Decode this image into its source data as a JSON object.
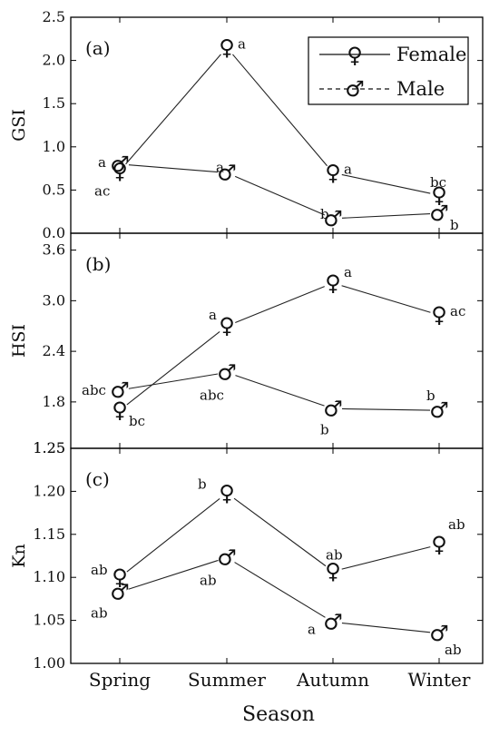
{
  "chart_data": [
    {
      "type": "line",
      "panel_label": "(a)",
      "ylabel": "GSI",
      "ylim": [
        0.0,
        2.5
      ],
      "yticks": [
        "0.0",
        "0.5",
        "1.0",
        "1.5",
        "2.0",
        "2.5"
      ],
      "categories": [
        "Spring",
        "Summer",
        "Autumn",
        "Winter"
      ],
      "series": [
        {
          "name": "Female",
          "values": [
            0.72,
            2.15,
            0.7,
            0.44
          ],
          "sig": [
            "ac",
            "a",
            "a",
            "bc"
          ]
        },
        {
          "name": "Male",
          "values": [
            0.8,
            0.7,
            0.17,
            0.23
          ],
          "sig": [
            "a",
            "a",
            "b",
            "b"
          ]
        }
      ]
    },
    {
      "type": "line",
      "panel_label": "(b)",
      "ylabel": "HSI",
      "ylim": [
        1.25,
        3.8
      ],
      "yticks": [
        "1.25",
        "1.8",
        "2.4",
        "3.0",
        "3.6"
      ],
      "categories": [
        "Spring",
        "Summer",
        "Autumn",
        "Winter"
      ],
      "series": [
        {
          "name": "Female",
          "values": [
            1.7,
            2.7,
            3.21,
            2.83
          ],
          "sig": [
            "bc",
            "a",
            "a",
            "ac"
          ]
        },
        {
          "name": "Male",
          "values": [
            1.94,
            2.15,
            1.72,
            1.7
          ],
          "sig": [
            "abc",
            "abc",
            "b",
            "b"
          ]
        }
      ]
    },
    {
      "type": "line",
      "panel_label": "(c)",
      "ylabel": "Kn",
      "ylim": [
        1.0,
        1.25
      ],
      "yticks": [
        "1.00",
        "1.05",
        "1.10",
        "1.15",
        "1.20",
        "1.25"
      ],
      "categories": [
        "Spring",
        "Summer",
        "Autumn",
        "Winter"
      ],
      "series": [
        {
          "name": "Female",
          "values": [
            1.1,
            1.198,
            1.107,
            1.138
          ],
          "sig": [
            "ab",
            "b",
            "ab",
            "ab"
          ]
        },
        {
          "name": "Male",
          "values": [
            1.083,
            1.123,
            1.048,
            1.035
          ],
          "sig": [
            "ab",
            "ab",
            "a",
            "ab"
          ]
        }
      ]
    }
  ],
  "legend": {
    "placement": "top-right of panel (a)",
    "items": [
      {
        "symbol": "♀",
        "label": "Female",
        "line": "solid"
      },
      {
        "symbol": "♂",
        "label": "Male",
        "line": "dashed"
      }
    ]
  },
  "xlabel": "Season",
  "symbols": {
    "female": "♀",
    "male": "♂"
  },
  "colors": {
    "line": "#222222",
    "axis": "#000000",
    "background": "#ffffff"
  }
}
